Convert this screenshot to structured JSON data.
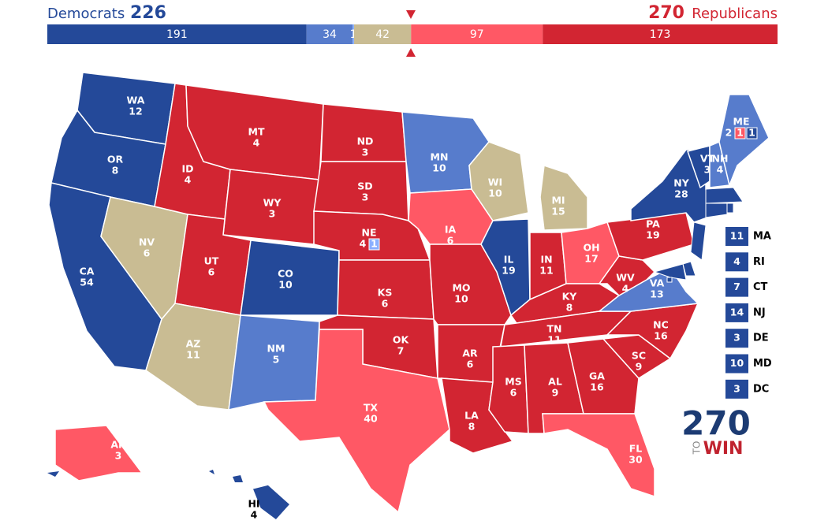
{
  "header": {
    "dem_label": "Democrats",
    "dem_total": 226,
    "rep_total": 270,
    "rep_label": "Republicans"
  },
  "bar": [
    {
      "value": 191,
      "color": "#244999"
    },
    {
      "value": 34,
      "color": "#577ccc"
    },
    {
      "value": 1,
      "color": "#8aafff"
    },
    {
      "value": 42,
      "color": "#c9bc93"
    },
    {
      "value": 97,
      "color": "#ff5865"
    },
    {
      "value": 173,
      "color": "#d22532"
    }
  ],
  "states": [
    {
      "abbr": "WA",
      "ev": 12,
      "color": "#244999"
    },
    {
      "abbr": "OR",
      "ev": 8,
      "color": "#244999"
    },
    {
      "abbr": "CA",
      "ev": 54,
      "color": "#244999"
    },
    {
      "abbr": "NV",
      "ev": 6,
      "color": "#c9bc93"
    },
    {
      "abbr": "ID",
      "ev": 4,
      "color": "#d22532"
    },
    {
      "abbr": "MT",
      "ev": 4,
      "color": "#d22532"
    },
    {
      "abbr": "WY",
      "ev": 3,
      "color": "#d22532"
    },
    {
      "abbr": "UT",
      "ev": 6,
      "color": "#d22532"
    },
    {
      "abbr": "CO",
      "ev": 10,
      "color": "#244999"
    },
    {
      "abbr": "AZ",
      "ev": 11,
      "color": "#c9bc93"
    },
    {
      "abbr": "NM",
      "ev": 5,
      "color": "#577ccc"
    },
    {
      "abbr": "ND",
      "ev": 3,
      "color": "#d22532"
    },
    {
      "abbr": "SD",
      "ev": 3,
      "color": "#d22532"
    },
    {
      "abbr": "NE",
      "ev": 4,
      "color": "#d22532",
      "districts": [
        {
          "ev": 1,
          "color": "#8aafff"
        }
      ]
    },
    {
      "abbr": "KS",
      "ev": 6,
      "color": "#d22532"
    },
    {
      "abbr": "OK",
      "ev": 7,
      "color": "#d22532"
    },
    {
      "abbr": "TX",
      "ev": 40,
      "color": "#ff5865"
    },
    {
      "abbr": "MN",
      "ev": 10,
      "color": "#577ccc"
    },
    {
      "abbr": "IA",
      "ev": 6,
      "color": "#ff5865"
    },
    {
      "abbr": "MO",
      "ev": 10,
      "color": "#d22532"
    },
    {
      "abbr": "AR",
      "ev": 6,
      "color": "#d22532"
    },
    {
      "abbr": "LA",
      "ev": 8,
      "color": "#d22532"
    },
    {
      "abbr": "WI",
      "ev": 10,
      "color": "#c9bc93"
    },
    {
      "abbr": "IL",
      "ev": 19,
      "color": "#244999"
    },
    {
      "abbr": "MI",
      "ev": 15,
      "color": "#c9bc93"
    },
    {
      "abbr": "IN",
      "ev": 11,
      "color": "#d22532"
    },
    {
      "abbr": "OH",
      "ev": 17,
      "color": "#ff5865"
    },
    {
      "abbr": "KY",
      "ev": 8,
      "color": "#d22532"
    },
    {
      "abbr": "TN",
      "ev": 11,
      "color": "#d22532"
    },
    {
      "abbr": "MS",
      "ev": 6,
      "color": "#d22532"
    },
    {
      "abbr": "AL",
      "ev": 9,
      "color": "#d22532"
    },
    {
      "abbr": "GA",
      "ev": 16,
      "color": "#d22532"
    },
    {
      "abbr": "SC",
      "ev": 9,
      "color": "#d22532"
    },
    {
      "abbr": "NC",
      "ev": 16,
      "color": "#d22532"
    },
    {
      "abbr": "VA",
      "ev": 13,
      "color": "#577ccc"
    },
    {
      "abbr": "WV",
      "ev": 4,
      "color": "#d22532"
    },
    {
      "abbr": "PA",
      "ev": 19,
      "color": "#d22532"
    },
    {
      "abbr": "NY",
      "ev": 28,
      "color": "#244999"
    },
    {
      "abbr": "VT",
      "ev": 3,
      "color": "#244999"
    },
    {
      "abbr": "NH",
      "ev": 4,
      "color": "#577ccc"
    },
    {
      "abbr": "ME",
      "ev": 2,
      "color": "#577ccc",
      "districts": [
        {
          "ev": 1,
          "color": "#ff5865"
        },
        {
          "ev": 1,
          "color": "#244999"
        }
      ]
    },
    {
      "abbr": "FL",
      "ev": 30,
      "color": "#ff5865"
    },
    {
      "abbr": "AK",
      "ev": 3,
      "color": "#ff5865"
    },
    {
      "abbr": "HI",
      "ev": 4,
      "color": "#244999"
    }
  ],
  "callouts": [
    {
      "abbr": "MA",
      "ev": 11,
      "color": "#244999"
    },
    {
      "abbr": "RI",
      "ev": 4,
      "color": "#244999"
    },
    {
      "abbr": "CT",
      "ev": 7,
      "color": "#244999"
    },
    {
      "abbr": "NJ",
      "ev": 14,
      "color": "#244999"
    },
    {
      "abbr": "DE",
      "ev": 3,
      "color": "#244999"
    },
    {
      "abbr": "MD",
      "ev": 10,
      "color": "#244999"
    },
    {
      "abbr": "DC",
      "ev": 3,
      "color": "#244999"
    }
  ],
  "logo": {
    "number": "270",
    "to": "TO",
    "win": "WIN"
  }
}
